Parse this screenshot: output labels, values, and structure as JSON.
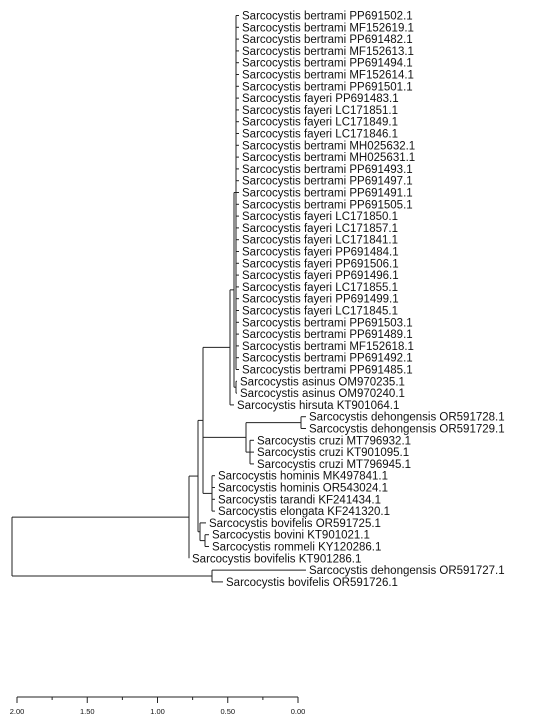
{
  "tree": {
    "line_color": "#222222",
    "text_color": "#111111",
    "axis": {
      "tick_values": [
        2.0,
        1.5,
        1.0,
        0.5,
        0.0
      ],
      "tick_labels": [
        "2.00",
        "1.50",
        "1.00",
        "0.50",
        "0.00"
      ]
    },
    "leaves": [
      "Sarcocystis bertrami PP691502.1",
      "Sarcocystis bertrami MF152619.1",
      "Sarcocystis bertrami PP691482.1",
      "Sarcocystis bertrami MF152613.1",
      "Sarcocystis bertrami PP691494.1",
      "Sarcocystis bertrami MF152614.1",
      "Sarcocystis bertrami PP691501.1",
      "Sarcocystis fayeri PP691483.1",
      "Sarcocystis fayeri LC171851.1",
      "Sarcocystis fayeri LC171849.1",
      "Sarcocystis fayeri LC171846.1",
      "Sarcocystis bertrami MH025632.1",
      "Sarcocystis bertrami MH025631.1",
      "Sarcocystis bertrami PP691493.1",
      "Sarcocystis bertrami PP691497.1",
      "Sarcocystis bertrami PP691491.1",
      "Sarcocystis bertrami PP691505.1",
      "Sarcocystis fayeri LC171850.1",
      "Sarcocystis fayeri LC171857.1",
      "Sarcocystis fayeri LC171841.1",
      "Sarcocystis fayeri PP691484.1",
      "Sarcocystis fayeri PP691506.1",
      "Sarcocystis fayeri PP691496.1",
      "Sarcocystis fayeri LC171855.1",
      "Sarcocystis fayeri PP691499.1",
      "Sarcocystis fayeri LC171845.1",
      "Sarcocystis bertrami PP691503.1",
      "Sarcocystis bertrami PP691489.1",
      "Sarcocystis bertrami MF152618.1",
      "Sarcocystis bertrami PP691492.1",
      "Sarcocystis bertrami PP691485.1",
      "Sarcocystis asinus OM970235.1",
      "Sarcocystis asinus OM970240.1",
      "Sarcocystis hirsuta KT901064.1",
      "Sarcocystis dehongensis OR591728.1",
      "Sarcocystis dehongensis OR591729.1",
      "Sarcocystis cruzi MT796932.1",
      "Sarcocystis cruzi KT901095.1",
      "Sarcocystis cruzi MT796945.1",
      "Sarcocystis hominis MK497841.1",
      "Sarcocystis hominis OR543024.1",
      "Sarcocystis tarandi KF241434.1",
      "Sarcocystis elongata KF241320.1",
      "Sarcocystis bovifelis OR591725.1",
      "Sarcocystis bovini KT901021.1",
      "Sarcocystis rommeli KY120286.1",
      "Sarcocystis bovifelis KT901286.1",
      "Sarcocystis dehongensis OR591727.1",
      "Sarcocystis bovifelis OR591726.1"
    ]
  }
}
